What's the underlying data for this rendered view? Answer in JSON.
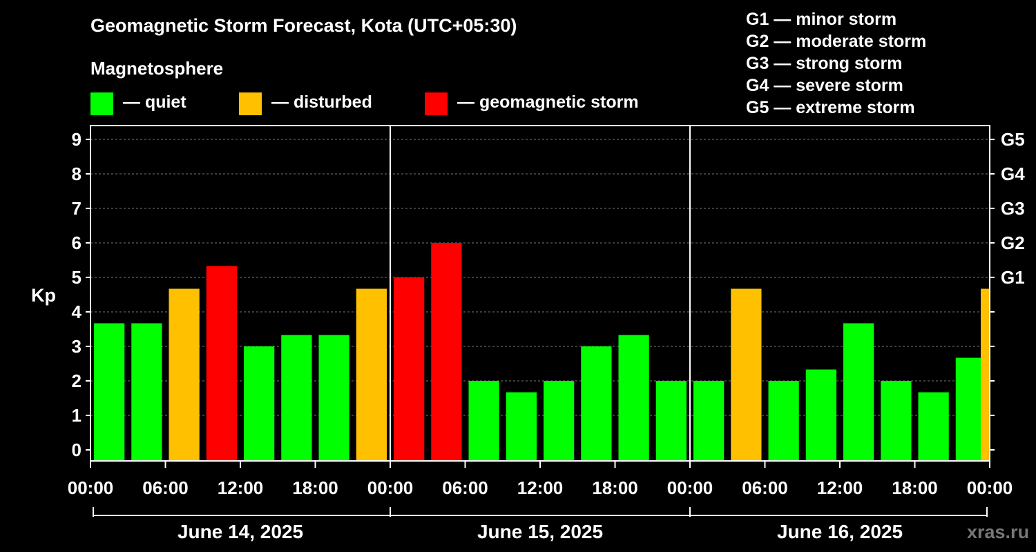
{
  "header": {
    "title": "Geomagnetic Storm Forecast, Kota (UTC+05:30)",
    "subtitle": "Magnetosphere"
  },
  "legend": [
    {
      "label": "— quiet",
      "color": "#00ff00"
    },
    {
      "label": "— disturbed",
      "color": "#ffc000"
    },
    {
      "label": "— geomagnetic storm",
      "color": "#ff0000"
    }
  ],
  "g_scale": [
    {
      "level": "G1",
      "desc": "minor storm",
      "text": "G1 — minor storm"
    },
    {
      "level": "G2",
      "desc": "moderate storm",
      "text": "G2 — moderate storm"
    },
    {
      "level": "G3",
      "desc": "strong storm",
      "text": "G3 — strong storm"
    },
    {
      "level": "G4",
      "desc": "severe storm",
      "text": "G4 — severe storm"
    },
    {
      "level": "G5",
      "desc": "extreme storm",
      "text": "G5 — extreme storm"
    }
  ],
  "footer": {
    "site": "xras.ru"
  },
  "colors": {
    "quiet": "#00ff00",
    "disturbed": "#ffc000",
    "storm": "#ff0000",
    "background": "#000000",
    "axis": "#ffffff"
  },
  "chart_data": {
    "type": "bar",
    "ylabel": "Kp",
    "ylim": [
      0,
      9
    ],
    "yticks": [
      0,
      1,
      2,
      3,
      4,
      5,
      6,
      7,
      8,
      9
    ],
    "right_axis": [
      {
        "kp": 5,
        "label": "G1"
      },
      {
        "kp": 6,
        "label": "G2"
      },
      {
        "kp": 7,
        "label": "G3"
      },
      {
        "kp": 8,
        "label": "G4"
      },
      {
        "kp": 9,
        "label": "G5"
      }
    ],
    "grid": true,
    "xtick_labels": [
      "00:00",
      "06:00",
      "12:00",
      "18:00",
      "00:00",
      "06:00",
      "12:00",
      "18:00",
      "00:00",
      "06:00",
      "12:00",
      "18:00",
      "00:00"
    ],
    "days": [
      "June 14, 2025",
      "June 15, 2025",
      "June 16, 2025"
    ],
    "interval_hours": 3,
    "values": [
      3.67,
      3.67,
      4.67,
      5.33,
      3.0,
      3.33,
      3.33,
      4.67,
      5.0,
      6.0,
      2.0,
      1.67,
      2.0,
      3.0,
      3.33,
      2.0,
      2.0,
      4.67,
      2.0,
      2.33,
      3.67,
      2.0,
      1.67,
      2.67,
      4.67
    ],
    "categories": [
      "quiet",
      "quiet",
      "disturbed",
      "storm",
      "quiet",
      "quiet",
      "quiet",
      "disturbed",
      "storm",
      "storm",
      "quiet",
      "quiet",
      "quiet",
      "quiet",
      "quiet",
      "quiet",
      "quiet",
      "disturbed",
      "quiet",
      "quiet",
      "quiet",
      "quiet",
      "quiet",
      "quiet",
      "disturbed"
    ]
  }
}
